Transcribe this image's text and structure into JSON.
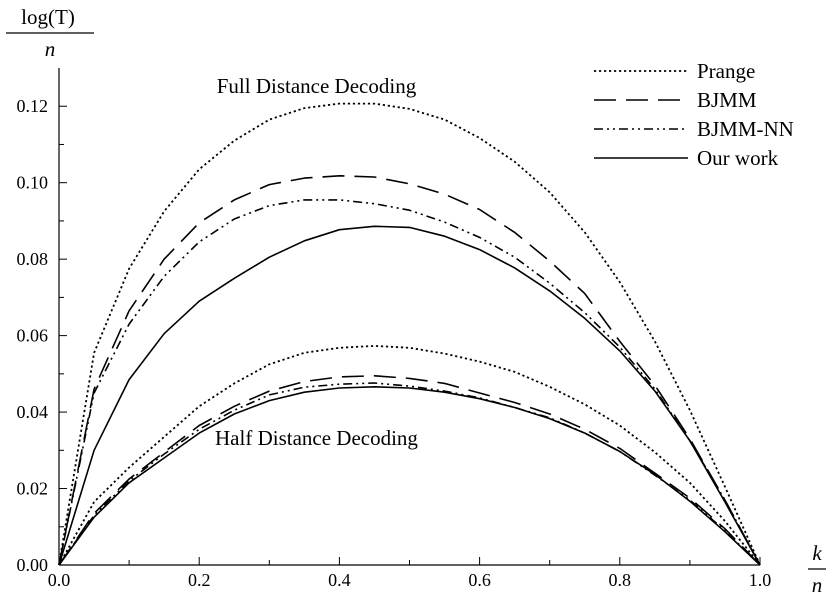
{
  "chart_data": {
    "type": "line",
    "title": "",
    "xlabel_num": "k",
    "xlabel_den": "n",
    "ylabel_num": "log(T)",
    "ylabel_den": "n",
    "xlim": [
      0.0,
      1.0
    ],
    "ylim": [
      0.0,
      0.13
    ],
    "x_ticks": [
      0.0,
      0.2,
      0.4,
      0.6,
      0.8,
      1.0
    ],
    "x_tick_labels": [
      "0.0",
      "0.2",
      "0.4",
      "0.6",
      "0.8",
      "1.0"
    ],
    "y_ticks": [
      0.0,
      0.02,
      0.04,
      0.06,
      0.08,
      0.1,
      0.12
    ],
    "y_tick_labels": [
      "0.00",
      "0.02",
      "0.04",
      "0.06",
      "0.08",
      "0.10",
      "0.12"
    ],
    "grid": false,
    "legend_position": "top-right",
    "annotations": [
      {
        "text": "Full Distance Decoding",
        "x": 0.47,
        "y": 0.1255
      },
      {
        "text": "Half Distance Decoding",
        "x": 0.47,
        "y": 0.0335
      }
    ],
    "x": [
      0.0,
      0.05,
      0.1,
      0.15,
      0.2,
      0.25,
      0.3,
      0.35,
      0.4,
      0.45,
      0.5,
      0.55,
      0.6,
      0.65,
      0.7,
      0.75,
      0.8,
      0.85,
      0.9,
      0.95,
      1.0
    ],
    "series": [
      {
        "name": "Prange",
        "style": "dotted",
        "group": "full",
        "values": [
          0.0,
          0.0555,
          0.0775,
          0.0925,
          0.1035,
          0.111,
          0.1165,
          0.1195,
          0.1207,
          0.1207,
          0.1193,
          0.1165,
          0.1117,
          0.1055,
          0.0975,
          0.087,
          0.074,
          0.0585,
          0.0405,
          0.0205,
          0.0
        ]
      },
      {
        "name": "BJMM",
        "style": "longdash",
        "group": "full",
        "values": [
          0.0,
          0.046,
          0.0665,
          0.08,
          0.0895,
          0.0955,
          0.0995,
          0.1012,
          0.1018,
          0.1015,
          0.0997,
          0.097,
          0.093,
          0.087,
          0.0795,
          0.071,
          0.0585,
          0.047,
          0.033,
          0.017,
          0.0
        ]
      },
      {
        "name": "BJMM-NN",
        "style": "dashdotdot",
        "group": "full",
        "values": [
          0.0,
          0.045,
          0.063,
          0.0755,
          0.0845,
          0.0905,
          0.094,
          0.0955,
          0.0955,
          0.0945,
          0.0928,
          0.0897,
          0.0857,
          0.0805,
          0.0737,
          0.066,
          0.057,
          0.046,
          0.0325,
          0.017,
          0.0
        ]
      },
      {
        "name": "Our work",
        "style": "solid",
        "group": "full",
        "values": [
          0.0,
          0.03,
          0.0485,
          0.0605,
          0.069,
          0.075,
          0.0805,
          0.0848,
          0.0877,
          0.0886,
          0.0883,
          0.086,
          0.0825,
          0.0777,
          0.0717,
          0.0645,
          0.056,
          0.0455,
          0.0325,
          0.0165,
          0.0
        ]
      },
      {
        "name": "Prange",
        "style": "dotted",
        "group": "half",
        "values": [
          0.0,
          0.0165,
          0.0255,
          0.0335,
          0.0415,
          0.0475,
          0.0525,
          0.0555,
          0.0568,
          0.0573,
          0.0568,
          0.0553,
          0.0532,
          0.0505,
          0.0466,
          0.042,
          0.0365,
          0.0295,
          0.0215,
          0.0115,
          0.0
        ]
      },
      {
        "name": "BJMM",
        "style": "longdash",
        "group": "half",
        "values": [
          0.0,
          0.0135,
          0.0225,
          0.0295,
          0.0365,
          0.0415,
          0.0455,
          0.048,
          0.0492,
          0.0495,
          0.0488,
          0.0475,
          0.045,
          0.0425,
          0.0395,
          0.0355,
          0.0305,
          0.024,
          0.0175,
          0.0095,
          0.0
        ]
      },
      {
        "name": "BJMM-NN",
        "style": "dashdotdot",
        "group": "half",
        "values": [
          0.0,
          0.013,
          0.022,
          0.029,
          0.0355,
          0.0405,
          0.0445,
          0.0465,
          0.0473,
          0.0476,
          0.0468,
          0.0455,
          0.0437,
          0.0412,
          0.0385,
          0.0345,
          0.0297,
          0.0235,
          0.017,
          0.009,
          0.0
        ]
      },
      {
        "name": "Our work",
        "style": "solid",
        "group": "half",
        "values": [
          0.0,
          0.0125,
          0.0215,
          0.028,
          0.0345,
          0.0395,
          0.043,
          0.0452,
          0.0463,
          0.0466,
          0.0463,
          0.0452,
          0.0435,
          0.0412,
          0.0383,
          0.0345,
          0.0297,
          0.0237,
          0.0167,
          0.0087,
          0.0
        ]
      }
    ],
    "legend": [
      {
        "label": "Prange",
        "style": "dotted"
      },
      {
        "label": "BJMM",
        "style": "longdash"
      },
      {
        "label": "BJMM-NN",
        "style": "dashdotdot"
      },
      {
        "label": "Our work",
        "style": "solid"
      }
    ]
  }
}
